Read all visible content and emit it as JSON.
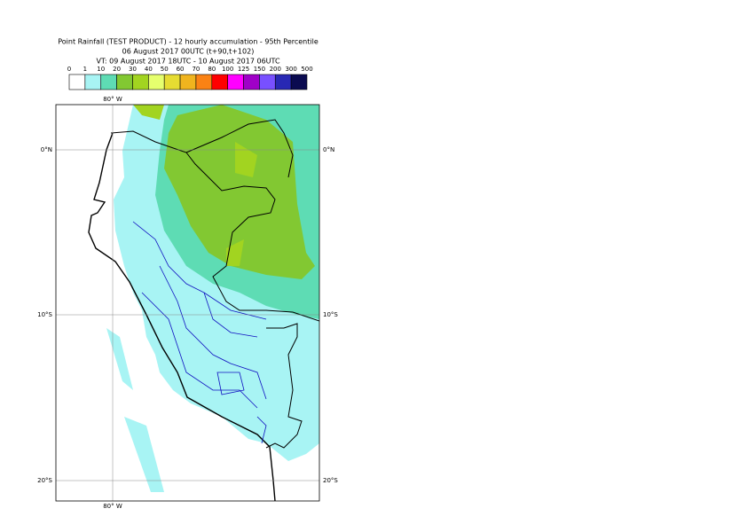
{
  "title_lines": [
    "Point Rainfall (TEST PRODUCT) - 12 hourly accumulation - 95th Percentile",
    "06 August 2017 00UTC (t+90,t+102)",
    "VT: 09 August 2017 18UTC - 10 August 2017 06UTC"
  ],
  "legend": {
    "ticks": [
      0,
      1,
      10,
      20,
      30,
      40,
      50,
      60,
      70,
      80,
      100,
      125,
      150,
      200,
      300,
      500
    ],
    "colors": [
      "#ffffff",
      "#a8f4f4",
      "#5edcb4",
      "#82c832",
      "#a2d420",
      "#e6ff6e",
      "#e6dc32",
      "#f0b41e",
      "#fa8214",
      "#ff0000",
      "#ff00ff",
      "#a000c8",
      "#7850ff",
      "#2828b4",
      "#0a0a50"
    ]
  },
  "axis_labels": {
    "lon": "80° W",
    "lat": [
      "0°N",
      "10°S",
      "20°S"
    ]
  }
}
